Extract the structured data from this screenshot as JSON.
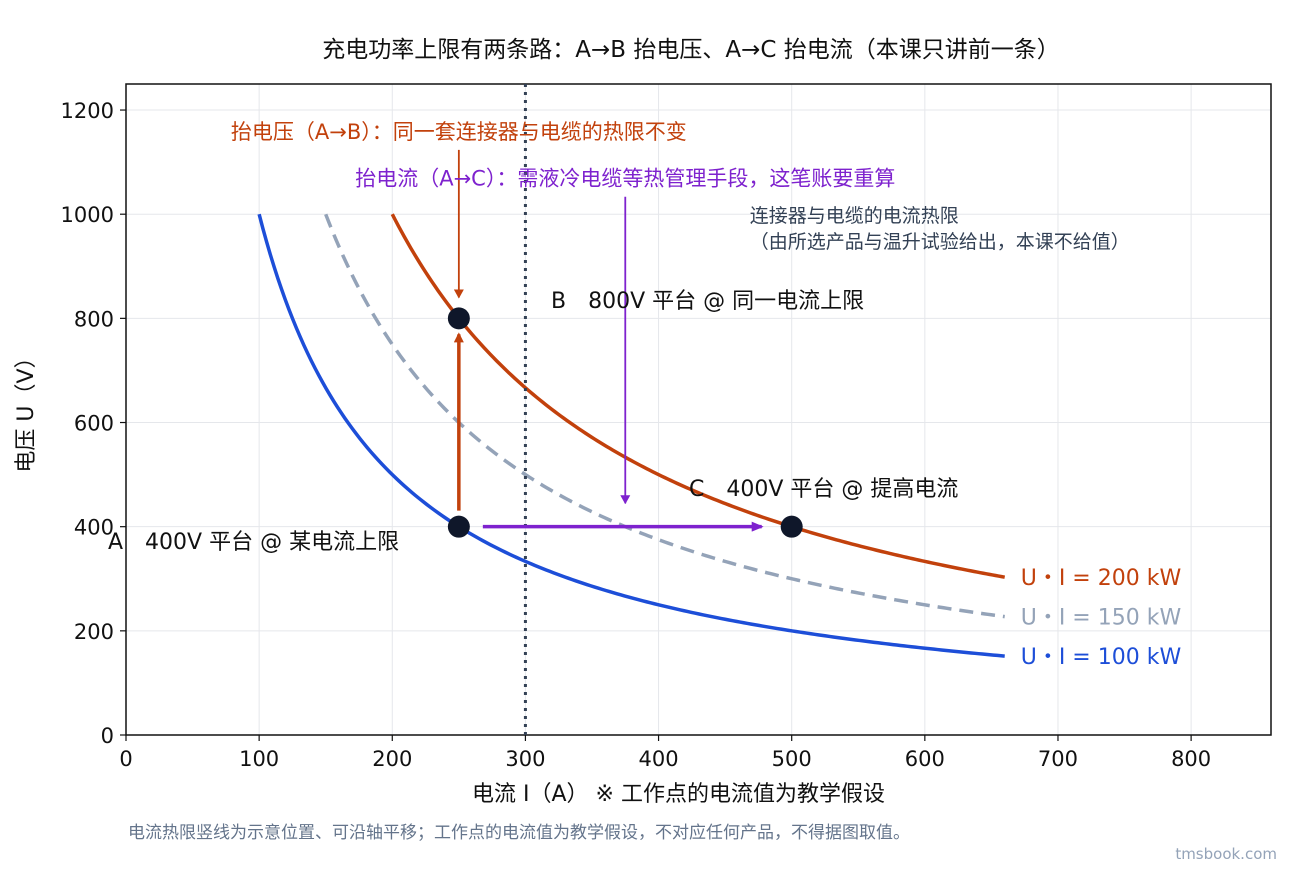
{
  "chart_data": {
    "type": "line",
    "title": "充电功率上限有两条路：A→B 抬电压、A→C 抬电流（本课只讲前一条）",
    "xlabel": "电流 I（A）    ※ 工作点的电流值为教学假设",
    "ylabel": "电压 U（V）",
    "xlim": [
      0,
      860
    ],
    "ylim": [
      0,
      1250
    ],
    "xticks": [
      0,
      100,
      200,
      300,
      400,
      500,
      600,
      700,
      800
    ],
    "yticks": [
      0,
      200,
      400,
      600,
      800,
      1000,
      1200
    ],
    "grid": true,
    "series": [
      {
        "name": "U・I = 200 kW",
        "power_kw": 200,
        "x_range": [
          200,
          660
        ],
        "color": "#c2410c",
        "style": "solid"
      },
      {
        "name": "U・I = 150 kW",
        "power_kw": 150,
        "x_range": [
          150,
          660
        ],
        "color": "#94a3b8",
        "style": "dashed"
      },
      {
        "name": "U・I = 100 kW",
        "power_kw": 100,
        "x_range": [
          100,
          660
        ],
        "color": "#1d4ed8",
        "style": "solid"
      }
    ],
    "vline": {
      "x": 300,
      "color": "#334155",
      "style": "dotted"
    },
    "points": [
      {
        "name": "A",
        "x": 250,
        "y": 400,
        "label": "A　400V 平台 @ 某电流上限"
      },
      {
        "name": "B",
        "x": 250,
        "y": 800,
        "label": "B　800V 平台 @ 同一电流上限"
      },
      {
        "name": "C",
        "x": 500,
        "y": 400,
        "label": "C　400V 平台 @ 提高电流"
      }
    ],
    "arrows": [
      {
        "name": "A-to-B",
        "from": [
          250,
          400
        ],
        "to": [
          250,
          800
        ],
        "color": "#c2410c"
      },
      {
        "name": "A-to-C",
        "from": [
          250,
          400
        ],
        "to": [
          500,
          400
        ],
        "color": "#7e22ce"
      }
    ],
    "annotations": [
      {
        "name": "annotation-ab",
        "text": "抬电压（A→B）：同一套连接器与电缆的热限不变",
        "color": "#c2410c",
        "x": 250,
        "y": 1160,
        "arrow_to": [
          250,
          840
        ]
      },
      {
        "name": "annotation-ac",
        "text": "抬电流（A→C）：需液冷电缆等热管理手段，这笔账要重算",
        "color": "#7e22ce",
        "x": 375,
        "y": 1070,
        "arrow_to": [
          375,
          445
        ]
      },
      {
        "name": "annotation-limit",
        "text": "连接器与电缆的电流热限\n（由所选产品与温升试验给出，本课不给值）",
        "color": "#334155",
        "x": 470,
        "y": 975
      }
    ]
  },
  "footnote": "电流热限竖线为示意位置、可沿轴平移；工作点的电流值为教学假设，不对应任何产品，不得据图取值。",
  "source": "tmsbook.com"
}
